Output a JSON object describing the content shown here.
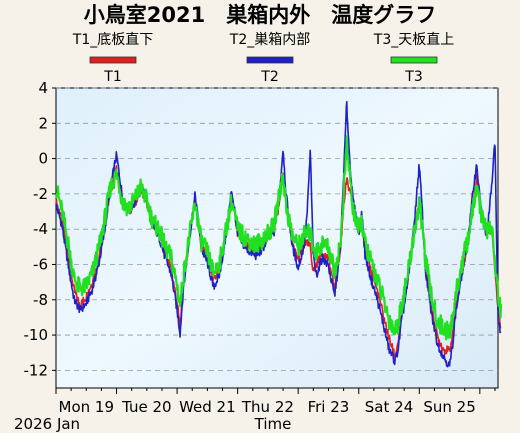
{
  "chart_data": {
    "type": "line",
    "title": "小鳥室2021　巣箱内外　温度グラフ",
    "xlabel": "Time",
    "ylabel": "",
    "year_month_label": "2026  Jan",
    "ylim": [
      -13,
      4
    ],
    "yticks": [
      4,
      2,
      0,
      -2,
      -4,
      -6,
      -8,
      -10,
      -12
    ],
    "grid": true,
    "legend_position": "top",
    "x_tick_labels": [
      "Mon 19",
      "Tue 20",
      "Wed 21",
      "Thu 22",
      "Fri 23",
      "Sat 24",
      "Sun 25"
    ],
    "x_range_days": [
      0,
      7.3
    ],
    "series": [
      {
        "name": "T1_底板直下",
        "short": "T1",
        "color": "#e02020",
        "points": [
          [
            0.0,
            -2.4
          ],
          [
            0.1,
            -3.5
          ],
          [
            0.2,
            -5.5
          ],
          [
            0.3,
            -7.5
          ],
          [
            0.4,
            -8.3
          ],
          [
            0.5,
            -7.8
          ],
          [
            0.6,
            -7.0
          ],
          [
            0.7,
            -5.8
          ],
          [
            0.8,
            -4.0
          ],
          [
            0.9,
            -1.8
          ],
          [
            1.0,
            -0.6
          ],
          [
            1.05,
            -1.4
          ],
          [
            1.1,
            -2.4
          ],
          [
            1.2,
            -3.0
          ],
          [
            1.3,
            -2.6
          ],
          [
            1.4,
            -1.8
          ],
          [
            1.5,
            -2.5
          ],
          [
            1.6,
            -3.7
          ],
          [
            1.7,
            -4.2
          ],
          [
            1.8,
            -5.4
          ],
          [
            1.9,
            -6.2
          ],
          [
            2.0,
            -8.2
          ],
          [
            2.05,
            -9.5
          ],
          [
            2.1,
            -7.2
          ],
          [
            2.2,
            -4.6
          ],
          [
            2.3,
            -2.3
          ],
          [
            2.35,
            -3.8
          ],
          [
            2.4,
            -4.9
          ],
          [
            2.5,
            -5.6
          ],
          [
            2.6,
            -7.0
          ],
          [
            2.7,
            -6.3
          ],
          [
            2.8,
            -4.4
          ],
          [
            2.9,
            -2.0
          ],
          [
            2.95,
            -3.0
          ],
          [
            3.0,
            -4.3
          ],
          [
            3.1,
            -4.8
          ],
          [
            3.2,
            -5.1
          ],
          [
            3.3,
            -5.3
          ],
          [
            3.4,
            -5.0
          ],
          [
            3.5,
            -4.4
          ],
          [
            3.6,
            -4.1
          ],
          [
            3.7,
            -2.4
          ],
          [
            3.75,
            -0.6
          ],
          [
            3.8,
            -2.6
          ],
          [
            3.9,
            -4.8
          ],
          [
            4.0,
            -5.8
          ],
          [
            4.1,
            -4.7
          ],
          [
            4.2,
            -5.0
          ],
          [
            4.25,
            -6.4
          ],
          [
            4.3,
            -6.0
          ],
          [
            4.4,
            -5.3
          ],
          [
            4.5,
            -5.7
          ],
          [
            4.6,
            -7.4
          ],
          [
            4.7,
            -5.2
          ],
          [
            4.75,
            -2.6
          ],
          [
            4.8,
            -1.2
          ],
          [
            4.9,
            -2.6
          ],
          [
            5.0,
            -4.2
          ],
          [
            5.05,
            -3.4
          ],
          [
            5.1,
            -5.0
          ],
          [
            5.2,
            -6.3
          ],
          [
            5.3,
            -7.4
          ],
          [
            5.4,
            -8.8
          ],
          [
            5.5,
            -10.2
          ],
          [
            5.6,
            -11.2
          ],
          [
            5.65,
            -10.4
          ],
          [
            5.7,
            -9.0
          ],
          [
            5.8,
            -7.1
          ],
          [
            5.9,
            -4.6
          ],
          [
            6.0,
            -2.3
          ],
          [
            6.05,
            -3.6
          ],
          [
            6.1,
            -6.0
          ],
          [
            6.2,
            -8.4
          ],
          [
            6.3,
            -10.1
          ],
          [
            6.4,
            -10.8
          ],
          [
            6.5,
            -10.9
          ],
          [
            6.55,
            -10.0
          ],
          [
            6.6,
            -8.5
          ],
          [
            6.7,
            -6.5
          ],
          [
            6.8,
            -4.9
          ],
          [
            6.9,
            -2.4
          ],
          [
            6.95,
            -1.0
          ],
          [
            7.0,
            -2.6
          ],
          [
            7.1,
            -4.1
          ],
          [
            7.2,
            -3.9
          ],
          [
            7.3,
            -8.6
          ],
          [
            7.35,
            -9.5
          ]
        ]
      },
      {
        "name": "T2_巣箱内部",
        "short": "T2",
        "color": "#2020c8",
        "points": [
          [
            0.0,
            -2.6
          ],
          [
            0.1,
            -3.8
          ],
          [
            0.2,
            -6.0
          ],
          [
            0.3,
            -8.0
          ],
          [
            0.4,
            -8.6
          ],
          [
            0.5,
            -8.2
          ],
          [
            0.6,
            -7.4
          ],
          [
            0.7,
            -6.1
          ],
          [
            0.8,
            -4.2
          ],
          [
            0.9,
            -1.6
          ],
          [
            1.0,
            0.2
          ],
          [
            1.05,
            -1.0
          ],
          [
            1.1,
            -2.3
          ],
          [
            1.2,
            -3.0
          ],
          [
            1.3,
            -2.5
          ],
          [
            1.4,
            -1.5
          ],
          [
            1.5,
            -2.4
          ],
          [
            1.6,
            -3.8
          ],
          [
            1.7,
            -4.4
          ],
          [
            1.8,
            -5.6
          ],
          [
            1.9,
            -6.5
          ],
          [
            2.0,
            -8.6
          ],
          [
            2.05,
            -9.9
          ],
          [
            2.1,
            -7.5
          ],
          [
            2.2,
            -4.6
          ],
          [
            2.3,
            -2.0
          ],
          [
            2.35,
            -3.6
          ],
          [
            2.4,
            -5.1
          ],
          [
            2.5,
            -5.9
          ],
          [
            2.6,
            -7.3
          ],
          [
            2.7,
            -6.6
          ],
          [
            2.8,
            -4.6
          ],
          [
            2.9,
            -1.8
          ],
          [
            2.95,
            -2.9
          ],
          [
            3.0,
            -4.4
          ],
          [
            3.1,
            -4.9
          ],
          [
            3.2,
            -5.3
          ],
          [
            3.3,
            -5.5
          ],
          [
            3.4,
            -5.2
          ],
          [
            3.5,
            -4.5
          ],
          [
            3.6,
            -4.2
          ],
          [
            3.7,
            -1.6
          ],
          [
            3.75,
            0.6
          ],
          [
            3.8,
            -2.0
          ],
          [
            3.9,
            -4.9
          ],
          [
            4.0,
            -6.2
          ],
          [
            4.1,
            -4.9
          ],
          [
            4.15,
            -3.0
          ],
          [
            4.2,
            0.5
          ],
          [
            4.25,
            -5.6
          ],
          [
            4.3,
            -6.6
          ],
          [
            4.4,
            -5.6
          ],
          [
            4.5,
            -6.1
          ],
          [
            4.6,
            -7.8
          ],
          [
            4.7,
            -5.0
          ],
          [
            4.75,
            -1.0
          ],
          [
            4.8,
            3.2
          ],
          [
            4.85,
            0.0
          ],
          [
            4.9,
            -2.2
          ],
          [
            5.0,
            -4.3
          ],
          [
            5.05,
            -3.1
          ],
          [
            5.1,
            -5.4
          ],
          [
            5.2,
            -6.8
          ],
          [
            5.3,
            -7.9
          ],
          [
            5.4,
            -9.3
          ],
          [
            5.5,
            -10.8
          ],
          [
            5.6,
            -11.5
          ],
          [
            5.65,
            -10.8
          ],
          [
            5.7,
            -9.4
          ],
          [
            5.8,
            -7.3
          ],
          [
            5.9,
            -4.3
          ],
          [
            6.0,
            -0.3
          ],
          [
            6.05,
            -3.0
          ],
          [
            6.1,
            -6.3
          ],
          [
            6.2,
            -8.8
          ],
          [
            6.3,
            -10.5
          ],
          [
            6.4,
            -11.2
          ],
          [
            6.5,
            -11.8
          ],
          [
            6.55,
            -10.5
          ],
          [
            6.6,
            -8.8
          ],
          [
            6.7,
            -6.6
          ],
          [
            6.8,
            -4.7
          ],
          [
            6.9,
            -1.5
          ],
          [
            6.95,
            -0.3
          ],
          [
            7.0,
            -2.3
          ],
          [
            7.1,
            -4.3
          ],
          [
            7.15,
            -3.2
          ],
          [
            7.2,
            -1.4
          ],
          [
            7.25,
            1.0
          ],
          [
            7.3,
            -9.2
          ],
          [
            7.35,
            -9.9
          ]
        ]
      },
      {
        "name": "T3_天板直上",
        "short": "T3",
        "color": "#20e020",
        "points": [
          [
            0.0,
            -1.6
          ],
          [
            0.1,
            -3.0
          ],
          [
            0.2,
            -4.8
          ],
          [
            0.3,
            -6.8
          ],
          [
            0.4,
            -7.4
          ],
          [
            0.5,
            -7.2
          ],
          [
            0.6,
            -6.5
          ],
          [
            0.7,
            -5.2
          ],
          [
            0.8,
            -3.5
          ],
          [
            0.9,
            -1.6
          ],
          [
            1.0,
            -0.9
          ],
          [
            1.05,
            -1.6
          ],
          [
            1.1,
            -2.5
          ],
          [
            1.2,
            -2.8
          ],
          [
            1.3,
            -2.3
          ],
          [
            1.4,
            -1.6
          ],
          [
            1.5,
            -2.4
          ],
          [
            1.6,
            -3.6
          ],
          [
            1.7,
            -4.0
          ],
          [
            1.8,
            -5.0
          ],
          [
            1.9,
            -5.6
          ],
          [
            2.0,
            -7.2
          ],
          [
            2.05,
            -8.3
          ],
          [
            2.1,
            -6.7
          ],
          [
            2.2,
            -4.5
          ],
          [
            2.3,
            -2.5
          ],
          [
            2.35,
            -3.7
          ],
          [
            2.4,
            -4.7
          ],
          [
            2.5,
            -5.3
          ],
          [
            2.6,
            -6.5
          ],
          [
            2.7,
            -5.9
          ],
          [
            2.8,
            -4.2
          ],
          [
            2.9,
            -2.4
          ],
          [
            2.95,
            -3.2
          ],
          [
            3.0,
            -4.0
          ],
          [
            3.1,
            -4.4
          ],
          [
            3.2,
            -4.7
          ],
          [
            3.3,
            -4.9
          ],
          [
            3.4,
            -4.6
          ],
          [
            3.5,
            -4.2
          ],
          [
            3.6,
            -3.8
          ],
          [
            3.7,
            -1.8
          ],
          [
            3.75,
            -0.8
          ],
          [
            3.8,
            -2.7
          ],
          [
            3.9,
            -4.3
          ],
          [
            4.0,
            -5.0
          ],
          [
            4.1,
            -4.3
          ],
          [
            4.2,
            -4.2
          ],
          [
            4.25,
            -5.0
          ],
          [
            4.3,
            -5.3
          ],
          [
            4.4,
            -4.8
          ],
          [
            4.5,
            -5.0
          ],
          [
            4.6,
            -6.4
          ],
          [
            4.7,
            -4.8
          ],
          [
            4.75,
            -2.0
          ],
          [
            4.8,
            0.8
          ],
          [
            4.85,
            -0.8
          ],
          [
            4.9,
            -2.8
          ],
          [
            5.0,
            -4.1
          ],
          [
            5.05,
            -3.5
          ],
          [
            5.1,
            -4.8
          ],
          [
            5.2,
            -5.8
          ],
          [
            5.3,
            -6.8
          ],
          [
            5.4,
            -7.9
          ],
          [
            5.5,
            -9.1
          ],
          [
            5.6,
            -9.8
          ],
          [
            5.65,
            -9.3
          ],
          [
            5.7,
            -8.4
          ],
          [
            5.8,
            -6.8
          ],
          [
            5.9,
            -4.5
          ],
          [
            6.0,
            -2.6
          ],
          [
            6.05,
            -3.8
          ],
          [
            6.1,
            -5.7
          ],
          [
            6.2,
            -7.8
          ],
          [
            6.3,
            -9.2
          ],
          [
            6.4,
            -9.6
          ],
          [
            6.5,
            -9.9
          ],
          [
            6.55,
            -9.0
          ],
          [
            6.6,
            -7.8
          ],
          [
            6.7,
            -6.0
          ],
          [
            6.8,
            -4.6
          ],
          [
            6.9,
            -2.6
          ],
          [
            6.95,
            -1.6
          ],
          [
            7.0,
            -2.8
          ],
          [
            7.1,
            -4.0
          ],
          [
            7.2,
            -3.9
          ],
          [
            7.3,
            -7.8
          ],
          [
            7.35,
            -8.6
          ]
        ]
      }
    ]
  }
}
